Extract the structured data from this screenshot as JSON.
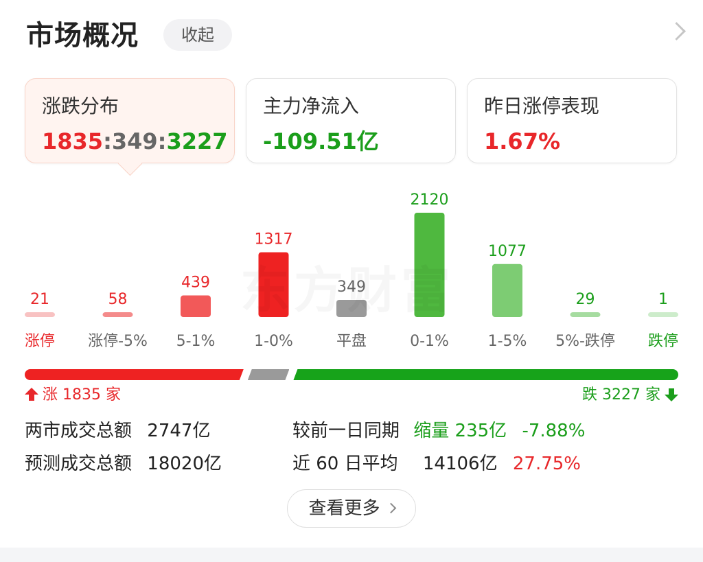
{
  "header": {
    "title": "市场概况",
    "collapse_label": "收起"
  },
  "cards": [
    {
      "label": "涨跌分布",
      "value_up": "1835",
      "sep1": ":",
      "value_flat": "349",
      "sep2": ":",
      "value_down": "3227",
      "active": true
    },
    {
      "label": "主力净流入",
      "value": "-109.51亿",
      "color": "#1b9e1b"
    },
    {
      "label": "昨日涨停表现",
      "value": "1.67%",
      "color": "#e8272a"
    }
  ],
  "chart_data": {
    "type": "bar",
    "categories": [
      "涨停",
      "涨停-5%",
      "5-1%",
      "1-0%",
      "平盘",
      "0-1%",
      "1-5%",
      "5%-跌停",
      "跌停"
    ],
    "values": [
      21,
      58,
      439,
      1317,
      349,
      2120,
      1077,
      29,
      1
    ],
    "colors": [
      "#f8c2c2",
      "#f48b8b",
      "#f25959",
      "#ee2222",
      "#9a9a9a",
      "#4fb83f",
      "#7dcc73",
      "#a6dca0",
      "#cdeccb"
    ],
    "value_label_colors": [
      "#e8272a",
      "#e8272a",
      "#e8272a",
      "#e8272a",
      "#666666",
      "#1b9e1b",
      "#1b9e1b",
      "#1b9e1b",
      "#1b9e1b"
    ],
    "category_label_colors": [
      "#e8272a",
      "#666666",
      "#666666",
      "#666666",
      "#666666",
      "#666666",
      "#666666",
      "#666666",
      "#1b9e1b"
    ],
    "ylim": [
      0,
      2120
    ]
  },
  "watermark": "东方财富",
  "breadth": {
    "up_count": 1835,
    "flat_count": 349,
    "down_count": 3227,
    "up_label": "涨 1835 家",
    "down_label": "跌 3227 家",
    "up_color": "#ee2222",
    "flat_color": "#9a9a9a",
    "down_color": "#17a31a"
  },
  "stats": {
    "turnover_label": "两市成交总额",
    "turnover_value": "2747亿",
    "compare_label": "较前一日同期",
    "compare_value": "缩量 235亿",
    "compare_pct": "-7.88%",
    "forecast_label": "预测成交总额",
    "forecast_value": "18020亿",
    "avg60_label": "近 60 日平均",
    "avg60_value": "14106亿",
    "avg60_pct": "27.75%"
  },
  "footer": {
    "more_label": "查看更多"
  }
}
